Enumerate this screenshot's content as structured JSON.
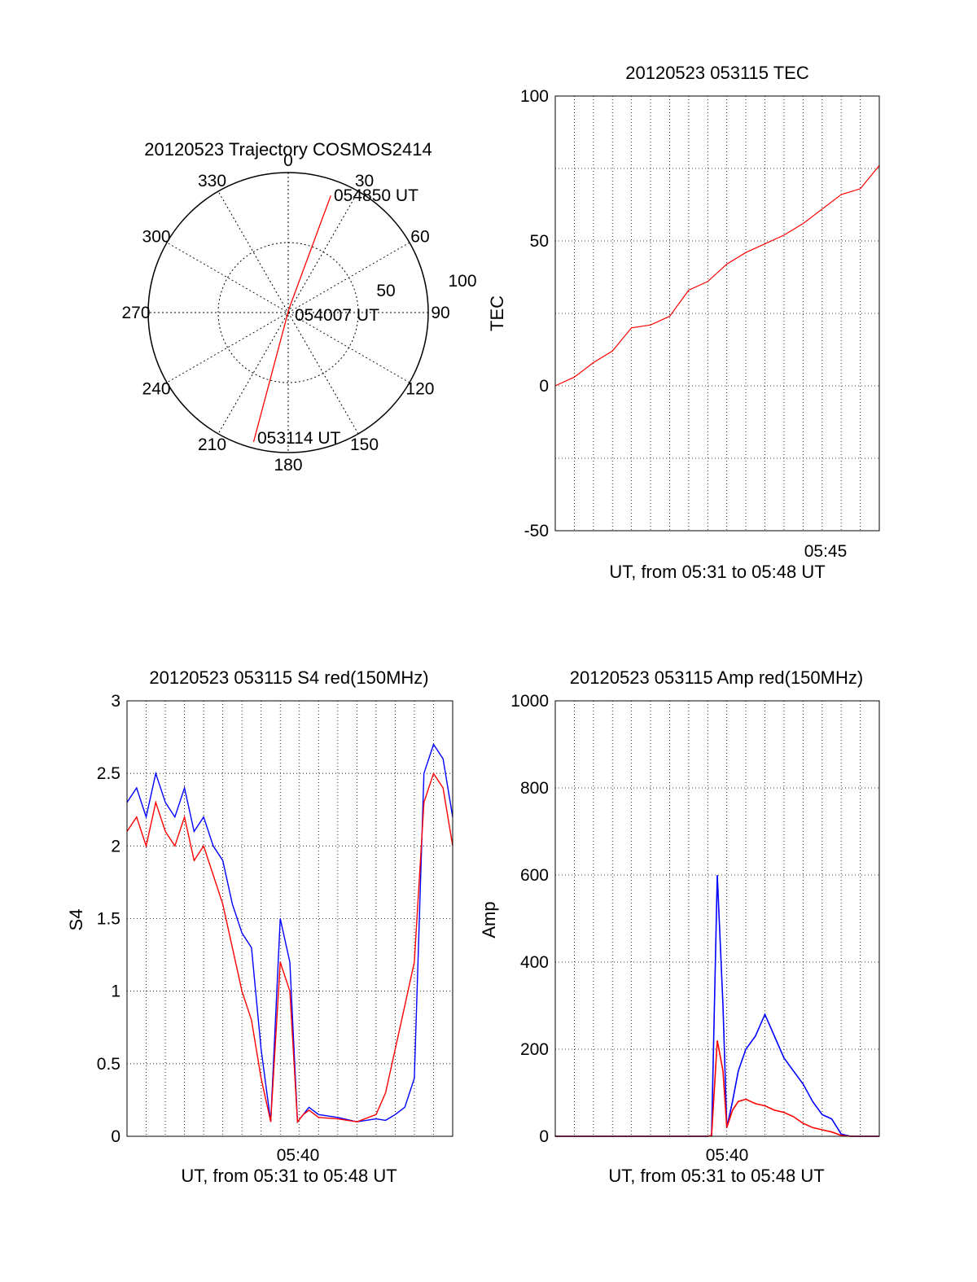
{
  "chart_data": [
    {
      "type": "polar",
      "title": "20120523 Trajectory COSMOS2414",
      "azimuth_labels": [
        "0",
        "30",
        "60",
        "90",
        "120",
        "150",
        "180",
        "210",
        "240",
        "270",
        "300",
        "330"
      ],
      "radial_labels": [
        "50",
        "100"
      ],
      "annotations": [
        "054850 UT",
        "054007 UT",
        "053114 UT"
      ],
      "trajectory": [
        {
          "time": "053114 UT",
          "az": 195,
          "zen": 86
        },
        {
          "time": "054007 UT",
          "az": 10,
          "zen": 2
        },
        {
          "time": "054850 UT",
          "az": 20,
          "zen": 80
        }
      ],
      "series_color": "#ff0000",
      "grid": true
    },
    {
      "type": "line",
      "title": "20120523 053115 TEC",
      "xlabel": "UT, from 05:31 to 05:48 UT",
      "ylabel": "TEC",
      "xlim": [
        0,
        17
      ],
      "ylim": [
        -50,
        100
      ],
      "yticks": [
        "-50",
        "0",
        "50",
        "100"
      ],
      "xticks": [
        "05:45"
      ],
      "grid": true,
      "series_color": "#ff0000",
      "x": [
        0,
        1,
        2,
        3,
        4,
        5,
        6,
        7,
        8,
        9,
        10,
        11,
        12,
        13,
        14,
        15,
        16,
        17
      ],
      "y": [
        0,
        3,
        8,
        12,
        20,
        21,
        24,
        33,
        36,
        42,
        46,
        49,
        52,
        56,
        61,
        66,
        68,
        76
      ]
    },
    {
      "type": "line",
      "title": "20120523 053115 S4 red(150MHz)",
      "xlabel": "UT, from 05:31 to 05:48 UT",
      "ylabel": "S4",
      "xlim": [
        0,
        17
      ],
      "ylim": [
        0,
        3
      ],
      "yticks": [
        "0",
        "0.5",
        "1",
        "1.5",
        "2",
        "2.5",
        "3"
      ],
      "xticks": [
        "05:40"
      ],
      "grid": true,
      "series": [
        {
          "color": "#0000ff",
          "x": [
            0,
            0.5,
            1,
            1.5,
            2,
            2.5,
            3,
            3.5,
            4,
            4.5,
            5,
            5.5,
            6,
            6.5,
            7,
            7.5,
            8,
            8.5,
            8.9,
            9.2,
            9.5,
            10,
            11,
            12,
            13,
            13.5,
            14,
            14.5,
            15,
            15.5,
            16,
            16.5,
            17
          ],
          "y": [
            2.3,
            2.4,
            2.2,
            2.5,
            2.3,
            2.2,
            2.4,
            2.1,
            2.2,
            2.0,
            1.9,
            1.6,
            1.4,
            1.3,
            0.6,
            0.1,
            1.5,
            1.2,
            0.1,
            0.15,
            0.2,
            0.15,
            0.13,
            0.1,
            0.12,
            0.11,
            0.15,
            0.2,
            0.4,
            2.5,
            2.7,
            2.6,
            2.2
          ]
        },
        {
          "color": "#ff0000",
          "x": [
            0,
            0.5,
            1,
            1.5,
            2,
            2.5,
            3,
            3.5,
            4,
            4.5,
            5,
            5.5,
            6,
            6.5,
            7,
            7.5,
            8,
            8.5,
            8.9,
            9.2,
            9.5,
            10,
            11,
            12,
            13,
            13.5,
            14,
            14.5,
            15,
            15.5,
            16,
            16.5,
            17
          ],
          "y": [
            2.1,
            2.2,
            2.0,
            2.3,
            2.1,
            2.0,
            2.2,
            1.9,
            2.0,
            1.8,
            1.6,
            1.3,
            1.0,
            0.8,
            0.4,
            0.1,
            1.2,
            1.0,
            0.1,
            0.15,
            0.18,
            0.13,
            0.12,
            0.1,
            0.15,
            0.3,
            0.6,
            0.9,
            1.2,
            2.3,
            2.5,
            2.4,
            2.0
          ]
        }
      ]
    },
    {
      "type": "line",
      "title": "20120523 053115 Amp red(150MHz)",
      "xlabel": "UT, from 05:31 to 05:48 UT",
      "ylabel": "Amp",
      "xlim": [
        0,
        17
      ],
      "ylim": [
        0,
        1000
      ],
      "yticks": [
        "0",
        "200",
        "400",
        "600",
        "800",
        "1000"
      ],
      "xticks": [
        "05:40"
      ],
      "grid": true,
      "series": [
        {
          "color": "#0000ff",
          "x": [
            0,
            2,
            4,
            6,
            8,
            8.2,
            8.5,
            8.8,
            9.0,
            9.3,
            9.6,
            10,
            10.5,
            11,
            11.5,
            12,
            12.5,
            13,
            13.5,
            14,
            14.5,
            15,
            15.5,
            16,
            17
          ],
          "y": [
            0,
            0,
            0,
            0,
            0,
            2,
            600,
            300,
            20,
            80,
            150,
            200,
            230,
            280,
            230,
            180,
            150,
            120,
            80,
            50,
            40,
            5,
            0,
            0,
            0
          ]
        },
        {
          "color": "#ff0000",
          "x": [
            0,
            2,
            4,
            6,
            8,
            8.2,
            8.5,
            8.8,
            9.0,
            9.3,
            9.6,
            10,
            10.5,
            11,
            11.5,
            12,
            12.5,
            13,
            13.5,
            14,
            14.5,
            15,
            15.5,
            16,
            17
          ],
          "y": [
            0,
            0,
            0,
            0,
            0,
            2,
            220,
            150,
            20,
            60,
            80,
            85,
            75,
            70,
            60,
            55,
            45,
            30,
            20,
            15,
            10,
            2,
            0,
            0,
            0
          ]
        }
      ]
    }
  ]
}
